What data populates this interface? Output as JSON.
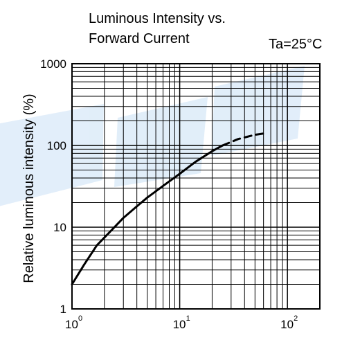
{
  "chart_data": {
    "type": "line",
    "title_line1": "Luminous Intensity vs.",
    "title_line2": "Forward Current",
    "condition": "Ta=25°C",
    "xlabel": "",
    "ylabel": "Relative luminous intensity  (%)",
    "x_scale": "log",
    "y_scale": "log",
    "xlim": [
      1,
      200
    ],
    "ylim": [
      1,
      1000
    ],
    "grid": true,
    "y_ticks": [
      {
        "value": 1000,
        "label": "1000"
      },
      {
        "value": 100,
        "label": "100"
      },
      {
        "value": 10,
        "label": "10"
      },
      {
        "value": 1,
        "label": "1"
      }
    ],
    "x_ticks": [
      {
        "value": 1,
        "base": "10",
        "exp": "0"
      },
      {
        "value": 10,
        "base": "10",
        "exp": "1"
      },
      {
        "value": 100,
        "base": "10",
        "exp": "2"
      }
    ],
    "series": [
      {
        "style": "solid",
        "x": [
          1,
          1.3,
          1.7,
          2.2,
          3,
          4,
          5,
          7,
          10,
          14,
          20,
          25
        ],
        "y": [
          2,
          3.5,
          6,
          8.5,
          13,
          18,
          23,
          32,
          45,
          63,
          85,
          100
        ]
      },
      {
        "style": "dashed",
        "x": [
          25,
          35,
          50,
          60
        ],
        "y": [
          100,
          120,
          135,
          140
        ]
      }
    ]
  }
}
